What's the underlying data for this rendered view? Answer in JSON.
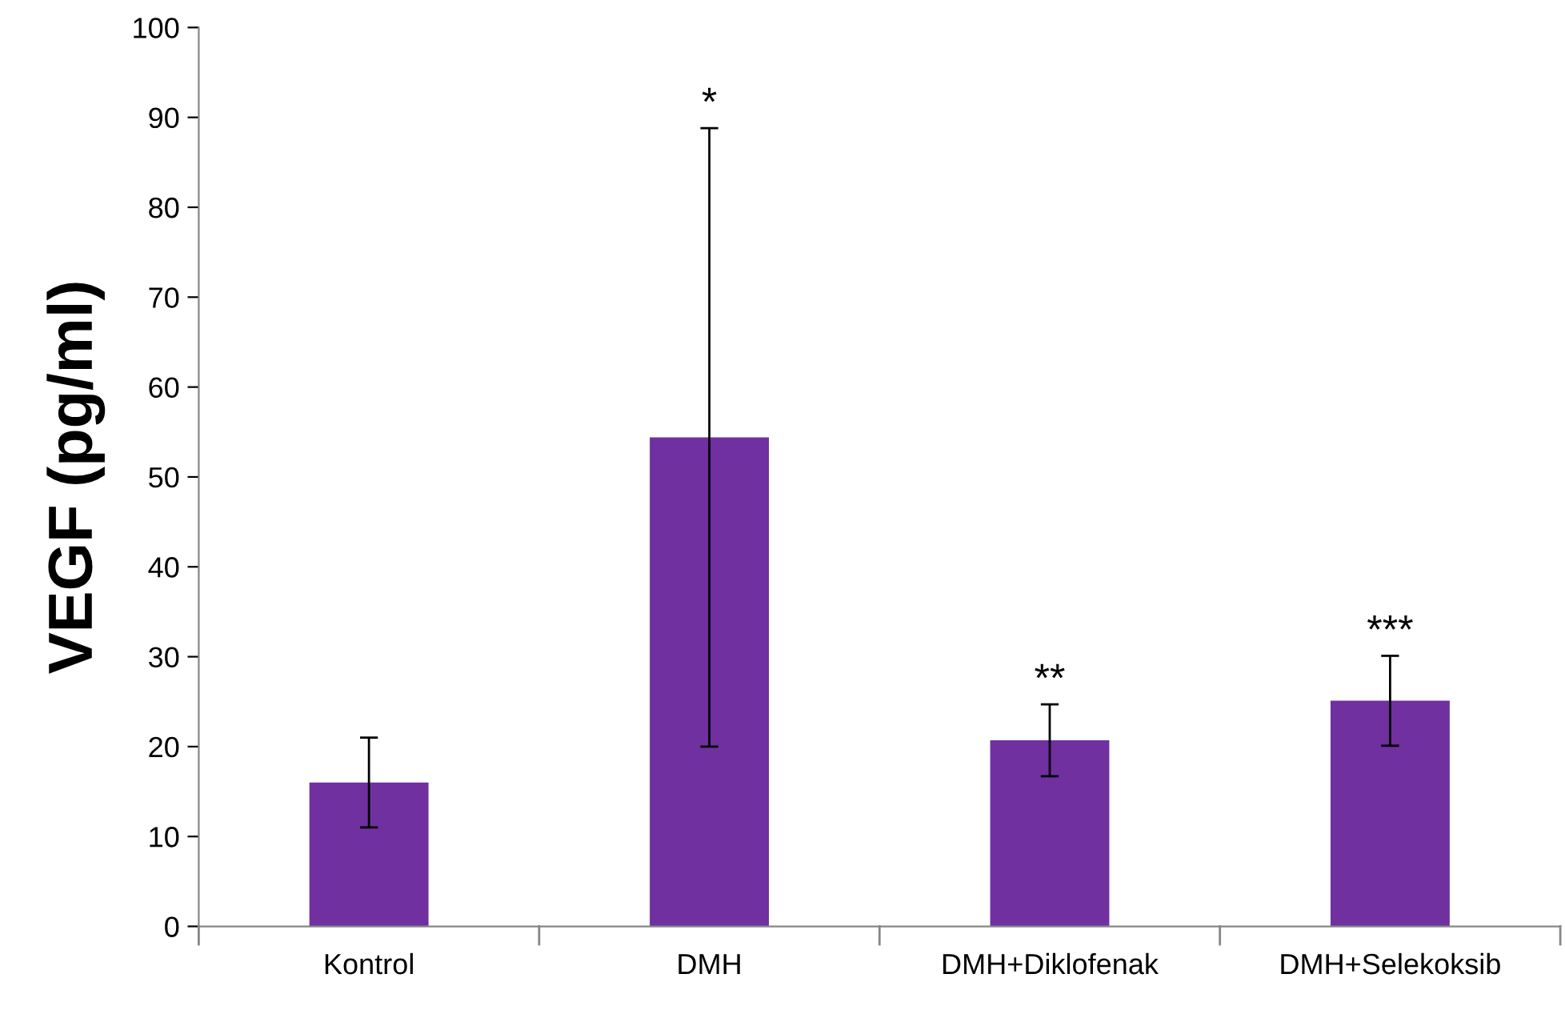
{
  "chart_data": {
    "type": "bar",
    "ylabel": "VEGF (pg/ml)",
    "categories": [
      "Kontrol",
      "DMH",
      "DMH+Diklofenak",
      "DMH+Selekoksib"
    ],
    "values": [
      16.0,
      54.4,
      20.7,
      25.1
    ],
    "errors": [
      5.0,
      34.4,
      4.0,
      5.0
    ],
    "color": "#7030a0",
    "ylim": [
      0,
      100
    ],
    "yticks": [
      0,
      10,
      20,
      30,
      40,
      50,
      60,
      70,
      80,
      90,
      100
    ],
    "grid": false,
    "annotations": [
      {
        "text": "*",
        "x": "DMH",
        "y": 88.8
      },
      {
        "text": "**",
        "x": "DMH+Diklofenak",
        "y": 24.7
      },
      {
        "text": "***",
        "x": "DMH+Selekoksib",
        "y": 30.1
      }
    ]
  }
}
